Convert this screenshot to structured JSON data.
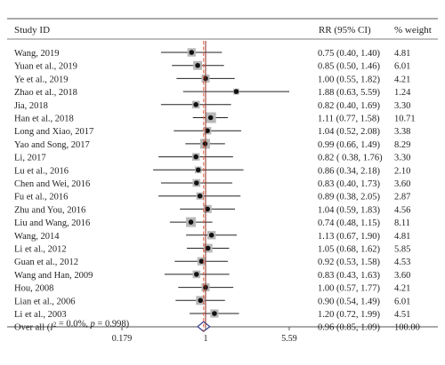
{
  "chart_data": {
    "type": "forest",
    "headers": {
      "study": "Study ID",
      "rr": "RR (95% CI)",
      "weight": "% weight"
    },
    "studies": [
      {
        "id": "Wang, 2019",
        "rr": 0.75,
        "lo": 0.4,
        "hi": 1.4,
        "rr_text": "0.75 (0.40, 1.40)",
        "weight": "4.81"
      },
      {
        "id": "Yuan et al., 2019",
        "rr": 0.85,
        "lo": 0.5,
        "hi": 1.46,
        "rr_text": "0.85 (0.50, 1.46)",
        "weight": "6.01"
      },
      {
        "id": "Ye et al., 2019",
        "rr": 1.0,
        "lo": 0.55,
        "hi": 1.82,
        "rr_text": "1.00 (0.55, 1.82)",
        "weight": "4.21"
      },
      {
        "id": "Zhao et al., 2018",
        "rr": 1.88,
        "lo": 0.63,
        "hi": 5.59,
        "rr_text": "1.88 (0.63, 5.59)",
        "weight": "1.24"
      },
      {
        "id": "Jia, 2018",
        "rr": 0.82,
        "lo": 0.4,
        "hi": 1.69,
        "rr_text": "0.82 (0.40, 1.69)",
        "weight": "3.30"
      },
      {
        "id": "Han et al., 2018",
        "rr": 1.11,
        "lo": 0.77,
        "hi": 1.58,
        "rr_text": "1.11 (0.77, 1.58)",
        "weight": "10.71"
      },
      {
        "id": "Long and Xiao, 2017",
        "rr": 1.04,
        "lo": 0.52,
        "hi": 2.08,
        "rr_text": "1.04 (0.52, 2.08)",
        "weight": "3.38"
      },
      {
        "id": "Yao and Song, 2017",
        "rr": 0.99,
        "lo": 0.66,
        "hi": 1.49,
        "rr_text": "0.99 (0.66, 1.49)",
        "weight": "8.29"
      },
      {
        "id": "Li, 2017",
        "rr": 0.82,
        "lo": 0.38,
        "hi": 1.76,
        "rr_text": "0.82 ( 0.38, 1.76)",
        "weight": "3.30"
      },
      {
        "id": "Lu et al., 2016",
        "rr": 0.86,
        "lo": 0.34,
        "hi": 2.18,
        "rr_text": "0.86 (0.34, 2.18)",
        "weight": "2.10"
      },
      {
        "id": "Chen and Wei, 2016",
        "rr": 0.83,
        "lo": 0.4,
        "hi": 1.73,
        "rr_text": "0.83 (0.40, 1.73)",
        "weight": "3.60"
      },
      {
        "id": "Fu et al., 2016",
        "rr": 0.89,
        "lo": 0.38,
        "hi": 2.05,
        "rr_text": "0.89 (0.38, 2.05)",
        "weight": "2.87"
      },
      {
        "id": "Zhu and You, 2016",
        "rr": 1.04,
        "lo": 0.59,
        "hi": 1.83,
        "rr_text": "1.04 (0.59, 1.83)",
        "weight": "4.56"
      },
      {
        "id": "Liu and Wang, 2016",
        "rr": 0.74,
        "lo": 0.48,
        "hi": 1.15,
        "rr_text": "0.74 (0.48, 1.15)",
        "weight": "8.11"
      },
      {
        "id": "Wang, 2014",
        "rr": 1.13,
        "lo": 0.67,
        "hi": 1.9,
        "rr_text": "1.13 (0.67, 1.90)",
        "weight": "4.81"
      },
      {
        "id": "Li et al., 2012",
        "rr": 1.05,
        "lo": 0.68,
        "hi": 1.62,
        "rr_text": "1.05 (0.68, 1.62)",
        "weight": "5.85"
      },
      {
        "id": "Guan et al., 2012",
        "rr": 0.92,
        "lo": 0.53,
        "hi": 1.58,
        "rr_text": "0.92 (0.53, 1.58)",
        "weight": "4.53"
      },
      {
        "id": "Wang and Han, 2009",
        "rr": 0.83,
        "lo": 0.43,
        "hi": 1.63,
        "rr_text": "0.83 (0.43, 1.63)",
        "weight": "3.60"
      },
      {
        "id": "Hou, 2008",
        "rr": 1.0,
        "lo": 0.57,
        "hi": 1.77,
        "rr_text": "1.00 (0.57, 1.77)",
        "weight": "4.21"
      },
      {
        "id": "Lian et al., 2006",
        "rr": 0.9,
        "lo": 0.54,
        "hi": 1.49,
        "rr_text": "0.90 (0.54, 1.49)",
        "weight": "6.01"
      },
      {
        "id": "Li et al., 2003",
        "rr": 1.2,
        "lo": 0.72,
        "hi": 1.99,
        "rr_text": "1.20 (0.72, 1.99)",
        "weight": "4.51"
      }
    ],
    "overall": {
      "label_prefix": "Over all (",
      "label_i2": "I",
      "label_i2_sup": "2",
      "label_mid": " = 0.0%, ",
      "label_p": "p",
      "label_end": " = 0.998)",
      "rr": 0.96,
      "lo": 0.85,
      "hi": 1.09,
      "rr_text": "0.96 (0.85, 1.09)",
      "weight": "100.00"
    },
    "x_axis": {
      "scale": "log",
      "range": [
        0.179,
        5.59
      ],
      "ticks": [
        {
          "value": 0.179,
          "label": "0.179"
        },
        {
          "value": 1,
          "label": "1"
        },
        {
          "value": 5.59,
          "label": "5.59"
        }
      ],
      "reference_line": 1
    },
    "colors": {
      "line": "#222222",
      "box": "#b8b8b8",
      "point": "#111111",
      "reference": "#8b2a1c",
      "overall_line": "#e05a3a",
      "diamond": "#2e3a8c",
      "rule": "#555555"
    }
  }
}
